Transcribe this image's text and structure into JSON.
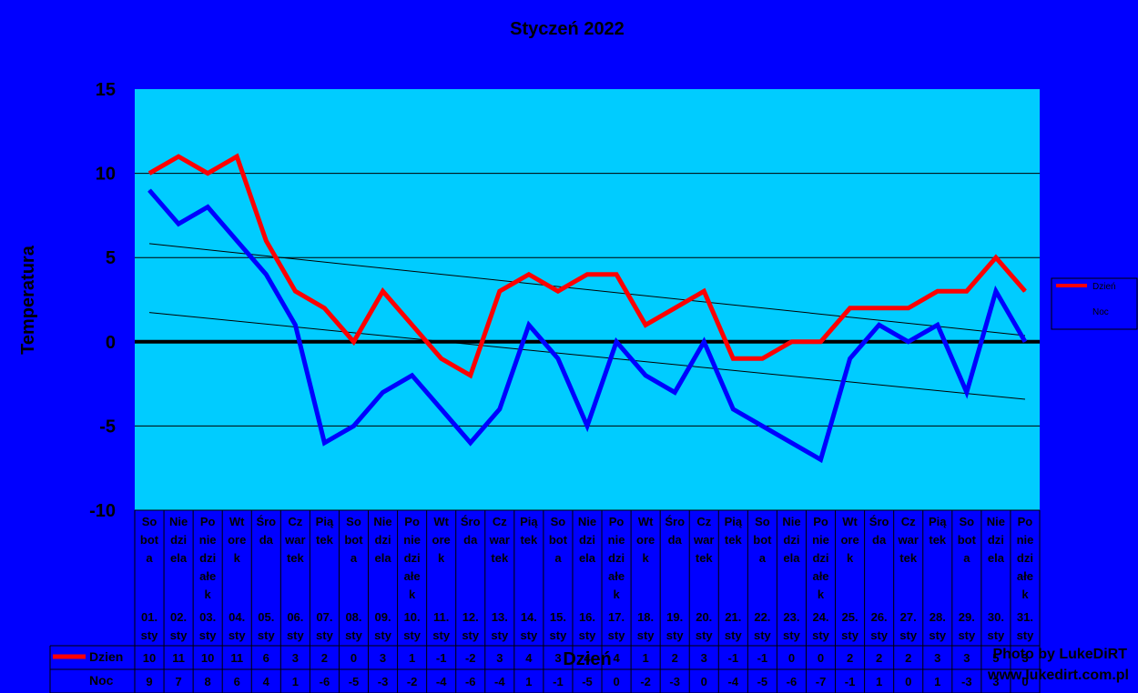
{
  "chart_data": {
    "type": "line",
    "title": "Styczeń 2022",
    "ylabel": "Temperatura",
    "xlabel": "Dzień",
    "ylim": [
      -10,
      15
    ],
    "yticks": [
      "15",
      "10",
      "5",
      "0",
      "-5",
      "-10"
    ],
    "grid": true,
    "legend_position": "right",
    "weekdays": [
      [
        "So",
        "bot",
        "a"
      ],
      [
        "Nie",
        "dzi",
        "ela"
      ],
      [
        "Po",
        "nie",
        "dzi",
        "ałe",
        "k"
      ],
      [
        "Wt",
        "ore",
        "k"
      ],
      [
        "Śro",
        "da"
      ],
      [
        "Cz",
        "war",
        "tek"
      ],
      [
        "Pią",
        "tek"
      ],
      [
        "So",
        "bot",
        "a"
      ],
      [
        "Nie",
        "dzi",
        "ela"
      ],
      [
        "Po",
        "nie",
        "dzi",
        "ałe",
        "k"
      ],
      [
        "Wt",
        "ore",
        "k"
      ],
      [
        "Śro",
        "da"
      ],
      [
        "Cz",
        "war",
        "tek"
      ],
      [
        "Pią",
        "tek"
      ],
      [
        "So",
        "bot",
        "a"
      ],
      [
        "Nie",
        "dzi",
        "ela"
      ],
      [
        "Po",
        "nie",
        "dzi",
        "ałe",
        "k"
      ],
      [
        "Wt",
        "ore",
        "k"
      ],
      [
        "Śro",
        "da"
      ],
      [
        "Cz",
        "war",
        "tek"
      ],
      [
        "Pią",
        "tek"
      ],
      [
        "So",
        "bot",
        "a"
      ],
      [
        "Nie",
        "dzi",
        "ela"
      ],
      [
        "Po",
        "nie",
        "dzi",
        "ałe",
        "k"
      ],
      [
        "Wt",
        "ore",
        "k"
      ],
      [
        "Śro",
        "da"
      ],
      [
        "Cz",
        "war",
        "tek"
      ],
      [
        "Pią",
        "tek"
      ],
      [
        "So",
        "bot",
        "a"
      ],
      [
        "Nie",
        "dzi",
        "ela"
      ],
      [
        "Po",
        "nie",
        "dzi",
        "ałe",
        "k"
      ]
    ],
    "dates": [
      "01.",
      "02.",
      "03.",
      "04.",
      "05.",
      "06.",
      "07.",
      "08.",
      "09.",
      "10.",
      "11.",
      "12.",
      "13.",
      "14.",
      "15.",
      "16.",
      "17.",
      "18.",
      "19.",
      "20.",
      "21.",
      "22.",
      "23.",
      "24.",
      "25.",
      "26.",
      "27.",
      "28.",
      "29.",
      "30.",
      "31."
    ],
    "month_label": "sty",
    "series": [
      {
        "name": "Dzień",
        "legend_label": "Dzień",
        "table_label": "Dzien",
        "color": "#FF0000",
        "values": [
          10,
          11,
          10,
          11,
          6,
          3,
          2,
          0,
          3,
          1,
          -1,
          -2,
          3,
          4,
          3,
          4,
          4,
          1,
          2,
          3,
          -1,
          -1,
          0,
          0,
          2,
          2,
          2,
          3,
          3,
          5,
          3
        ]
      },
      {
        "name": "Noc",
        "legend_label": "Noc",
        "table_label": "Noc",
        "color": "#0000FF",
        "values": [
          9,
          7,
          8,
          6,
          4,
          1,
          -6,
          -5,
          -3,
          -2,
          -4,
          -6,
          -4,
          1,
          -1,
          -5,
          0,
          -2,
          -3,
          0,
          -4,
          -5,
          -6,
          -7,
          -1,
          1,
          0,
          1,
          -3,
          3,
          0
        ]
      }
    ],
    "plot_background": "#00CCFF",
    "page_background": "#0000FF"
  },
  "credit": {
    "line1": "Photo by LukeDiRT",
    "line2": "www.lukedirt.com.pl"
  }
}
